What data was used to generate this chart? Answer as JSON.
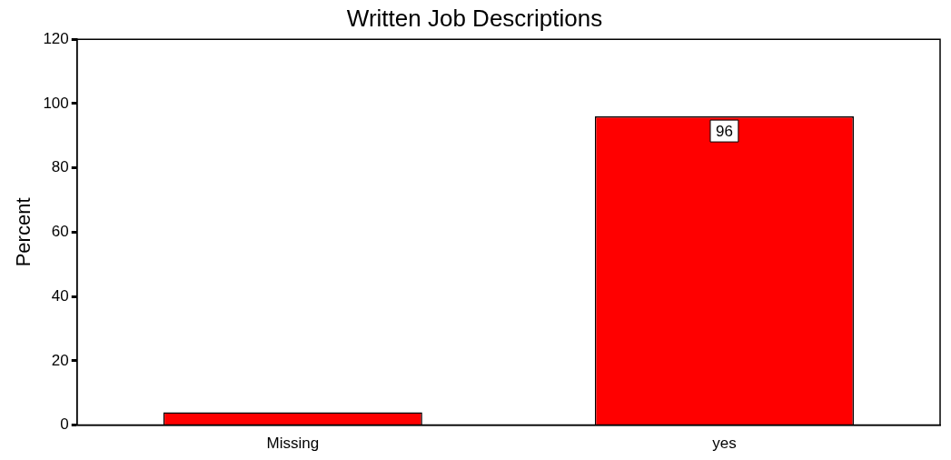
{
  "chart_data": {
    "type": "bar",
    "title": "Written Job Descriptions",
    "ylabel": "Percent",
    "categories": [
      "Missing",
      "yes"
    ],
    "values": [
      4,
      96
    ],
    "color": "#ff0000",
    "value_labels": [
      null,
      "96"
    ],
    "ylim": [
      0,
      120
    ],
    "yticks": [
      0,
      20,
      40,
      60,
      80,
      100,
      120
    ],
    "grid": false,
    "legend": false
  }
}
